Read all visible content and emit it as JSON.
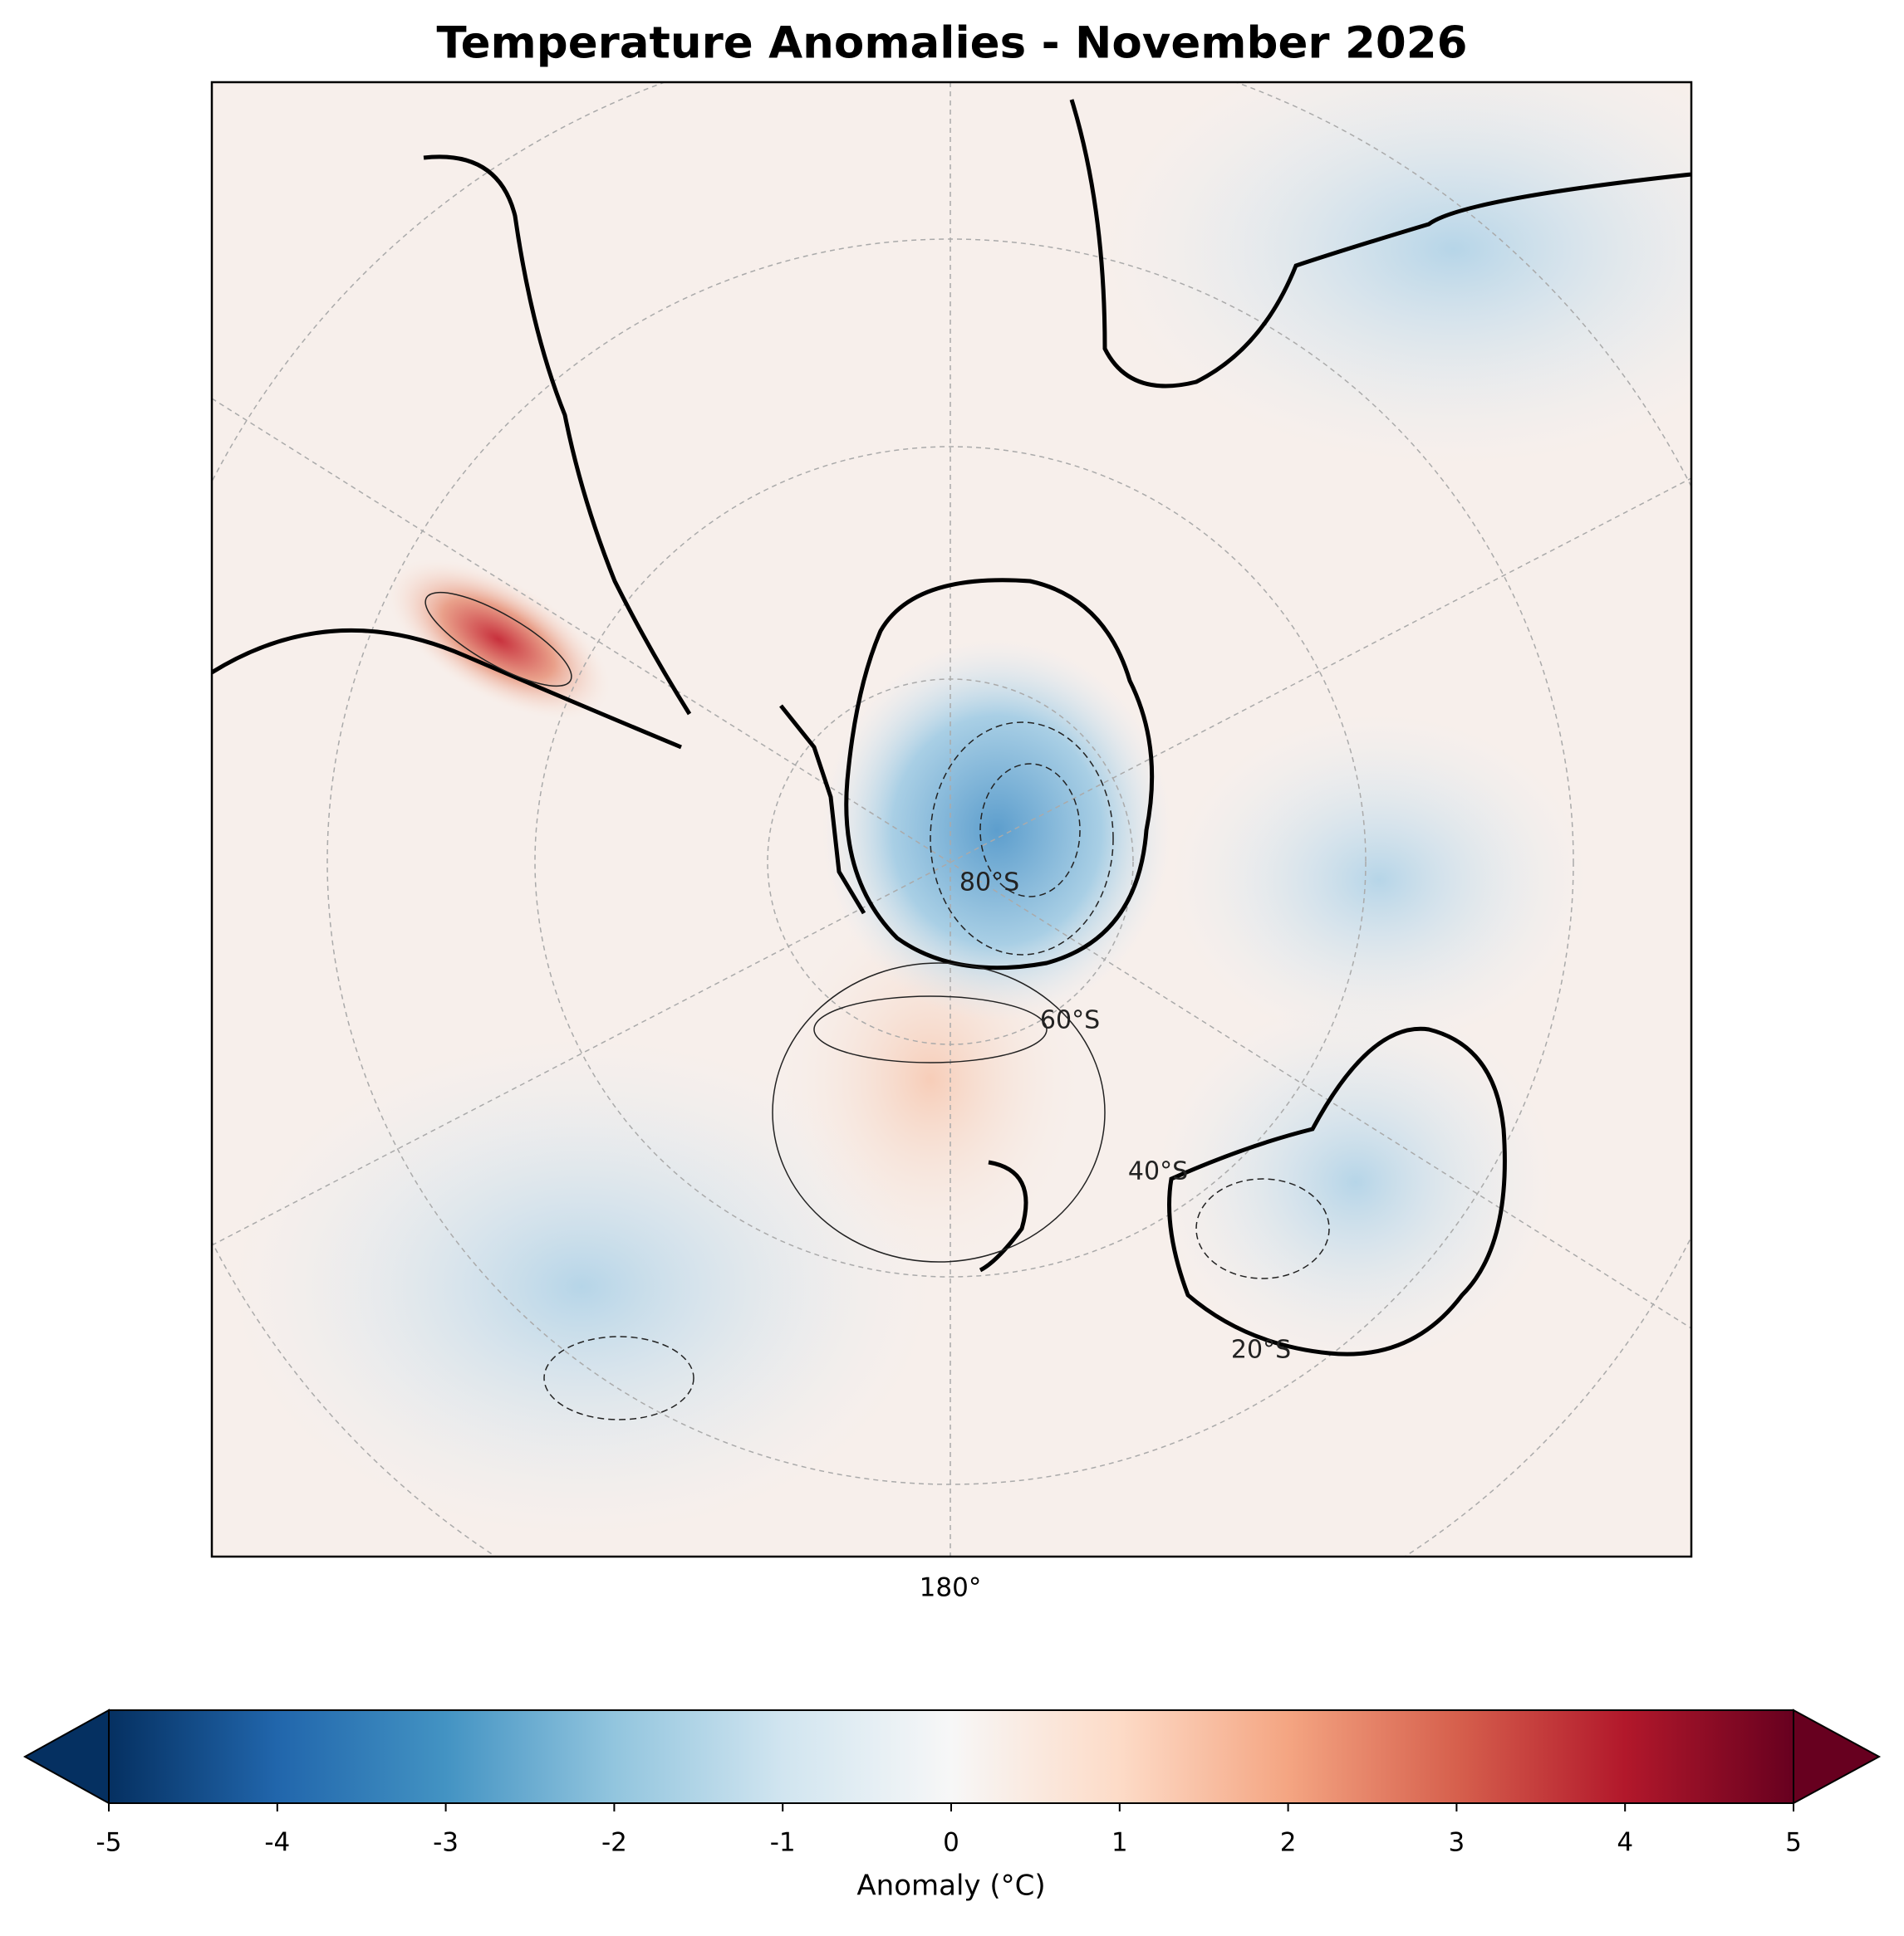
{
  "title": "Temperature Anomalies - November 2026",
  "map": {
    "longitude_label": "180°",
    "latitude_labels": [
      "80°S",
      "60°S",
      "40°S",
      "20°S"
    ]
  },
  "colorbar": {
    "label": "Anomaly (°C)",
    "lim": [
      -5,
      5
    ],
    "ticks": [
      -5,
      -4,
      -3,
      -2,
      -1,
      0,
      1,
      2,
      3,
      4,
      5
    ],
    "colors": [
      "#053061",
      "#2166ac",
      "#4393c3",
      "#92c5de",
      "#d1e5f0",
      "#f7f7f7",
      "#fddbc7",
      "#f4a582",
      "#d6604d",
      "#b2182b",
      "#67001f"
    ],
    "extend": "both"
  }
}
